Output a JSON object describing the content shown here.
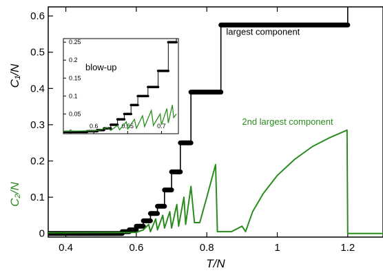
{
  "chart_data": {
    "type": "line",
    "x_axis": {
      "label": "T/N",
      "range": [
        0.35,
        1.3
      ],
      "ticks": [
        0.4,
        0.6,
        0.8,
        1,
        1.2
      ],
      "tick_labels": [
        "0.4",
        "0.6",
        "0.8",
        "1",
        "1.2"
      ]
    },
    "y_axis": {
      "range": [
        -0.01,
        0.625
      ],
      "ticks": [
        0,
        0.1,
        0.2,
        0.3,
        0.4,
        0.5,
        0.6
      ],
      "tick_labels": [
        "0",
        "0.1",
        "0.2",
        "0.3",
        "0.4",
        "0.5",
        "0.6"
      ],
      "label_upper": "C₁/N",
      "label_lower": "C₂/N"
    },
    "grid": false,
    "series": [
      {
        "name": "largest component",
        "color": "#000000",
        "style": "step-thick",
        "points": [
          [
            0.35,
            0.0
          ],
          [
            0.56,
            0.0
          ],
          [
            0.56,
            0.005
          ],
          [
            0.58,
            0.005
          ],
          [
            0.58,
            0.01
          ],
          [
            0.6,
            0.01
          ],
          [
            0.6,
            0.02
          ],
          [
            0.62,
            0.02
          ],
          [
            0.62,
            0.035
          ],
          [
            0.64,
            0.035
          ],
          [
            0.64,
            0.055
          ],
          [
            0.66,
            0.055
          ],
          [
            0.66,
            0.075
          ],
          [
            0.68,
            0.075
          ],
          [
            0.68,
            0.12
          ],
          [
            0.7,
            0.12
          ],
          [
            0.7,
            0.17
          ],
          [
            0.725,
            0.17
          ],
          [
            0.725,
            0.25
          ],
          [
            0.755,
            0.25
          ],
          [
            0.755,
            0.39
          ],
          [
            0.84,
            0.39
          ],
          [
            0.84,
            0.575
          ],
          [
            1.2,
            0.575
          ],
          [
            1.2,
            0.65
          ]
        ]
      },
      {
        "name": "2nd largest component",
        "color": "#2a8c1e",
        "style": "line",
        "points": [
          [
            0.35,
            0.002
          ],
          [
            0.6,
            0.003
          ],
          [
            0.62,
            0.01
          ],
          [
            0.635,
            0.025
          ],
          [
            0.64,
            0.005
          ],
          [
            0.655,
            0.04
          ],
          [
            0.66,
            0.01
          ],
          [
            0.675,
            0.05
          ],
          [
            0.68,
            0.015
          ],
          [
            0.695,
            0.06
          ],
          [
            0.7,
            0.015
          ],
          [
            0.715,
            0.08
          ],
          [
            0.72,
            0.02
          ],
          [
            0.735,
            0.1
          ],
          [
            0.74,
            0.025
          ],
          [
            0.755,
            0.13
          ],
          [
            0.765,
            0.03
          ],
          [
            0.78,
            0.03
          ],
          [
            0.8,
            0.1
          ],
          [
            0.825,
            0.19
          ],
          [
            0.83,
            0.005
          ],
          [
            0.87,
            0.005
          ],
          [
            0.9,
            0.02
          ],
          [
            0.91,
            0.005
          ],
          [
            0.93,
            0.06
          ],
          [
            0.96,
            0.11
          ],
          [
            1.0,
            0.16
          ],
          [
            1.05,
            0.205
          ],
          [
            1.1,
            0.24
          ],
          [
            1.15,
            0.265
          ],
          [
            1.198,
            0.285
          ],
          [
            1.2,
            0.0
          ],
          [
            1.3,
            0.0
          ]
        ]
      }
    ],
    "annotations": [
      {
        "text": "largest component",
        "color": "#000000",
        "x": 0.855,
        "y": 0.548
      },
      {
        "text": "2nd largest component",
        "color": "#2a8c1e",
        "x": 0.9,
        "y": 0.3
      }
    ],
    "inset": {
      "label": "blow-up",
      "x_range": [
        0.555,
        0.725
      ],
      "y_range": [
        -0.005,
        0.26
      ],
      "x_ticks": [
        0.6,
        0.65,
        0.7
      ],
      "x_tick_labels": [
        "0.6",
        "0.65",
        "0.7"
      ],
      "y_ticks": [
        0,
        0.05,
        0.1,
        0.15,
        0.2,
        0.25
      ],
      "y_tick_labels": [
        "0",
        "0.05",
        "0.1",
        "0.15",
        "0.2",
        "0.25"
      ],
      "series": [
        {
          "name": "largest component",
          "color": "#000000",
          "points": [
            [
              0.555,
              0.0
            ],
            [
              0.59,
              0.0
            ],
            [
              0.59,
              0.002
            ],
            [
              0.605,
              0.002
            ],
            [
              0.605,
              0.005
            ],
            [
              0.615,
              0.005
            ],
            [
              0.615,
              0.01
            ],
            [
              0.625,
              0.01
            ],
            [
              0.625,
              0.02
            ],
            [
              0.635,
              0.02
            ],
            [
              0.635,
              0.035
            ],
            [
              0.645,
              0.035
            ],
            [
              0.645,
              0.05
            ],
            [
              0.655,
              0.05
            ],
            [
              0.655,
              0.075
            ],
            [
              0.665,
              0.075
            ],
            [
              0.665,
              0.1
            ],
            [
              0.68,
              0.1
            ],
            [
              0.68,
              0.125
            ],
            [
              0.695,
              0.125
            ],
            [
              0.695,
              0.17
            ],
            [
              0.71,
              0.17
            ],
            [
              0.71,
              0.25
            ],
            [
              0.722,
              0.25
            ],
            [
              0.722,
              0.27
            ]
          ]
        },
        {
          "name": "2nd largest component",
          "color": "#2a8c1e",
          "points": [
            [
              0.555,
              0.002
            ],
            [
              0.6,
              0.003
            ],
            [
              0.61,
              0.006
            ],
            [
              0.62,
              0.012
            ],
            [
              0.625,
              0.004
            ],
            [
              0.635,
              0.018
            ],
            [
              0.638,
              0.006
            ],
            [
              0.648,
              0.028
            ],
            [
              0.65,
              0.008
            ],
            [
              0.66,
              0.035
            ],
            [
              0.663,
              0.01
            ],
            [
              0.672,
              0.045
            ],
            [
              0.675,
              0.015
            ],
            [
              0.685,
              0.06
            ],
            [
              0.688,
              0.018
            ],
            [
              0.698,
              0.05
            ],
            [
              0.7,
              0.02
            ],
            [
              0.708,
              0.065
            ],
            [
              0.71,
              0.025
            ],
            [
              0.716,
              0.075
            ],
            [
              0.718,
              0.04
            ],
            [
              0.722,
              0.05
            ]
          ]
        }
      ]
    }
  }
}
